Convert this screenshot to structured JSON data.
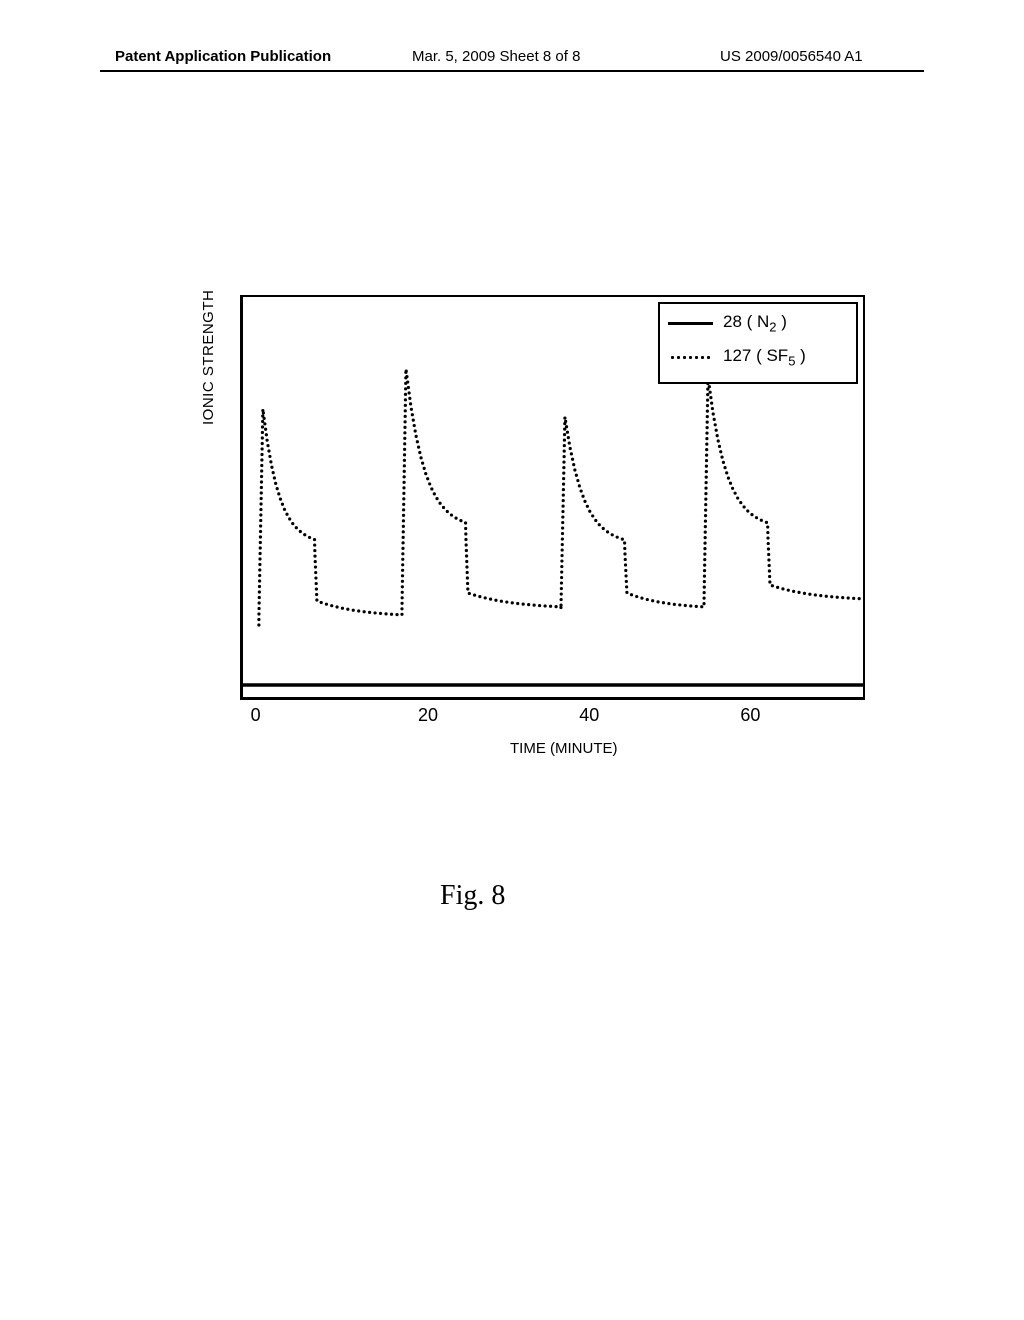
{
  "header": {
    "left": "Patent Application Publication",
    "center": "Mar. 5, 2009  Sheet 8 of 8",
    "right": "US 2009/0056540 A1"
  },
  "figure_caption": "Fig. 8",
  "chart": {
    "type": "line",
    "y_axis_label": "IONIC STRENGTH",
    "x_axis_label": "TIME (MINUTE)",
    "x_ticks": [
      {
        "value": 0,
        "pos_pct": 3
      },
      {
        "value": 20,
        "pos_pct": 30
      },
      {
        "value": 40,
        "pos_pct": 56
      },
      {
        "value": 60,
        "pos_pct": 82
      }
    ],
    "xlim": [
      0,
      78
    ],
    "ylim": [
      0,
      100
    ],
    "legend": {
      "items": [
        {
          "label_prefix": "28 ( N",
          "label_sub": "2",
          "label_suffix": " )",
          "style": "solid"
        },
        {
          "label_prefix": "127 ( SF",
          "label_sub": "5",
          "label_suffix": " )",
          "style": "dotted"
        }
      ]
    },
    "series_n2": {
      "color": "#000000",
      "style": "solid",
      "line_width": 3.5,
      "points": [
        [
          0,
          3
        ],
        [
          78,
          3
        ]
      ]
    },
    "series_sf5": {
      "color": "#000000",
      "style": "dotted",
      "dot_radius": 1.6,
      "cycles": [
        {
          "x_start": 2,
          "peak_y": 72,
          "plateau_y": 38,
          "baseline_y": 20,
          "x_peak_end": 4,
          "x_drop": 9,
          "x_end": 20
        },
        {
          "x_start": 20,
          "peak_y": 82,
          "plateau_y": 42,
          "baseline_y": 22,
          "x_peak_end": 23,
          "x_drop": 28,
          "x_end": 40
        },
        {
          "x_start": 40,
          "peak_y": 70,
          "plateau_y": 38,
          "baseline_y": 22,
          "x_peak_end": 43,
          "x_drop": 48,
          "x_end": 58
        },
        {
          "x_start": 58,
          "peak_y": 80,
          "plateau_y": 42,
          "baseline_y": 24,
          "x_peak_end": 61,
          "x_drop": 66,
          "x_end": 78
        }
      ]
    }
  }
}
